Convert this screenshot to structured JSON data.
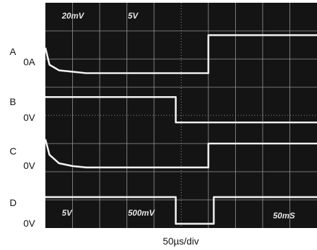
{
  "chart_data": {
    "type": "line",
    "title": "",
    "xlabel": "50µs/div",
    "ylabel": "",
    "grid": true,
    "divisions": {
      "x": 10,
      "y": 8
    },
    "trace_color": "#f2f2f2",
    "screen_color": "#141414",
    "grid_color": "#9a9a9a",
    "scale_labels": {
      "top_left": "20mV",
      "top_second": "5V",
      "bottom_left": "5V",
      "bottom_mid": "500mV",
      "bottom_right": "50mS"
    },
    "channels": [
      {
        "letter": "A",
        "level": "0A"
      },
      {
        "letter": "B",
        "level": "0V"
      },
      {
        "letter": "C",
        "level": "0V"
      },
      {
        "letter": "D",
        "level": "0V"
      }
    ],
    "series": [
      {
        "x": [
          0,
          0.15,
          0.5,
          1.0,
          1.5,
          2.0,
          6.0,
          6.0,
          10.0
        ],
        "y": [
          6.4,
          5.8,
          5.6,
          5.55,
          5.5,
          5.5,
          5.5,
          6.85,
          6.85
        ]
      },
      {
        "x": [
          0,
          4.8,
          4.8,
          10.0
        ],
        "y": [
          4.65,
          4.65,
          3.75,
          3.75
        ]
      },
      {
        "x": [
          0,
          0.15,
          0.5,
          1.0,
          1.5,
          2.0,
          6.0,
          6.0,
          10.0
        ],
        "y": [
          3.15,
          2.6,
          2.3,
          2.2,
          2.15,
          2.15,
          2.15,
          3.0,
          3.0
        ]
      },
      {
        "x": [
          0,
          4.8,
          4.8,
          6.2,
          6.2,
          10.0
        ],
        "y": [
          1.1,
          1.1,
          0.15,
          0.15,
          1.1,
          1.1
        ]
      }
    ]
  }
}
